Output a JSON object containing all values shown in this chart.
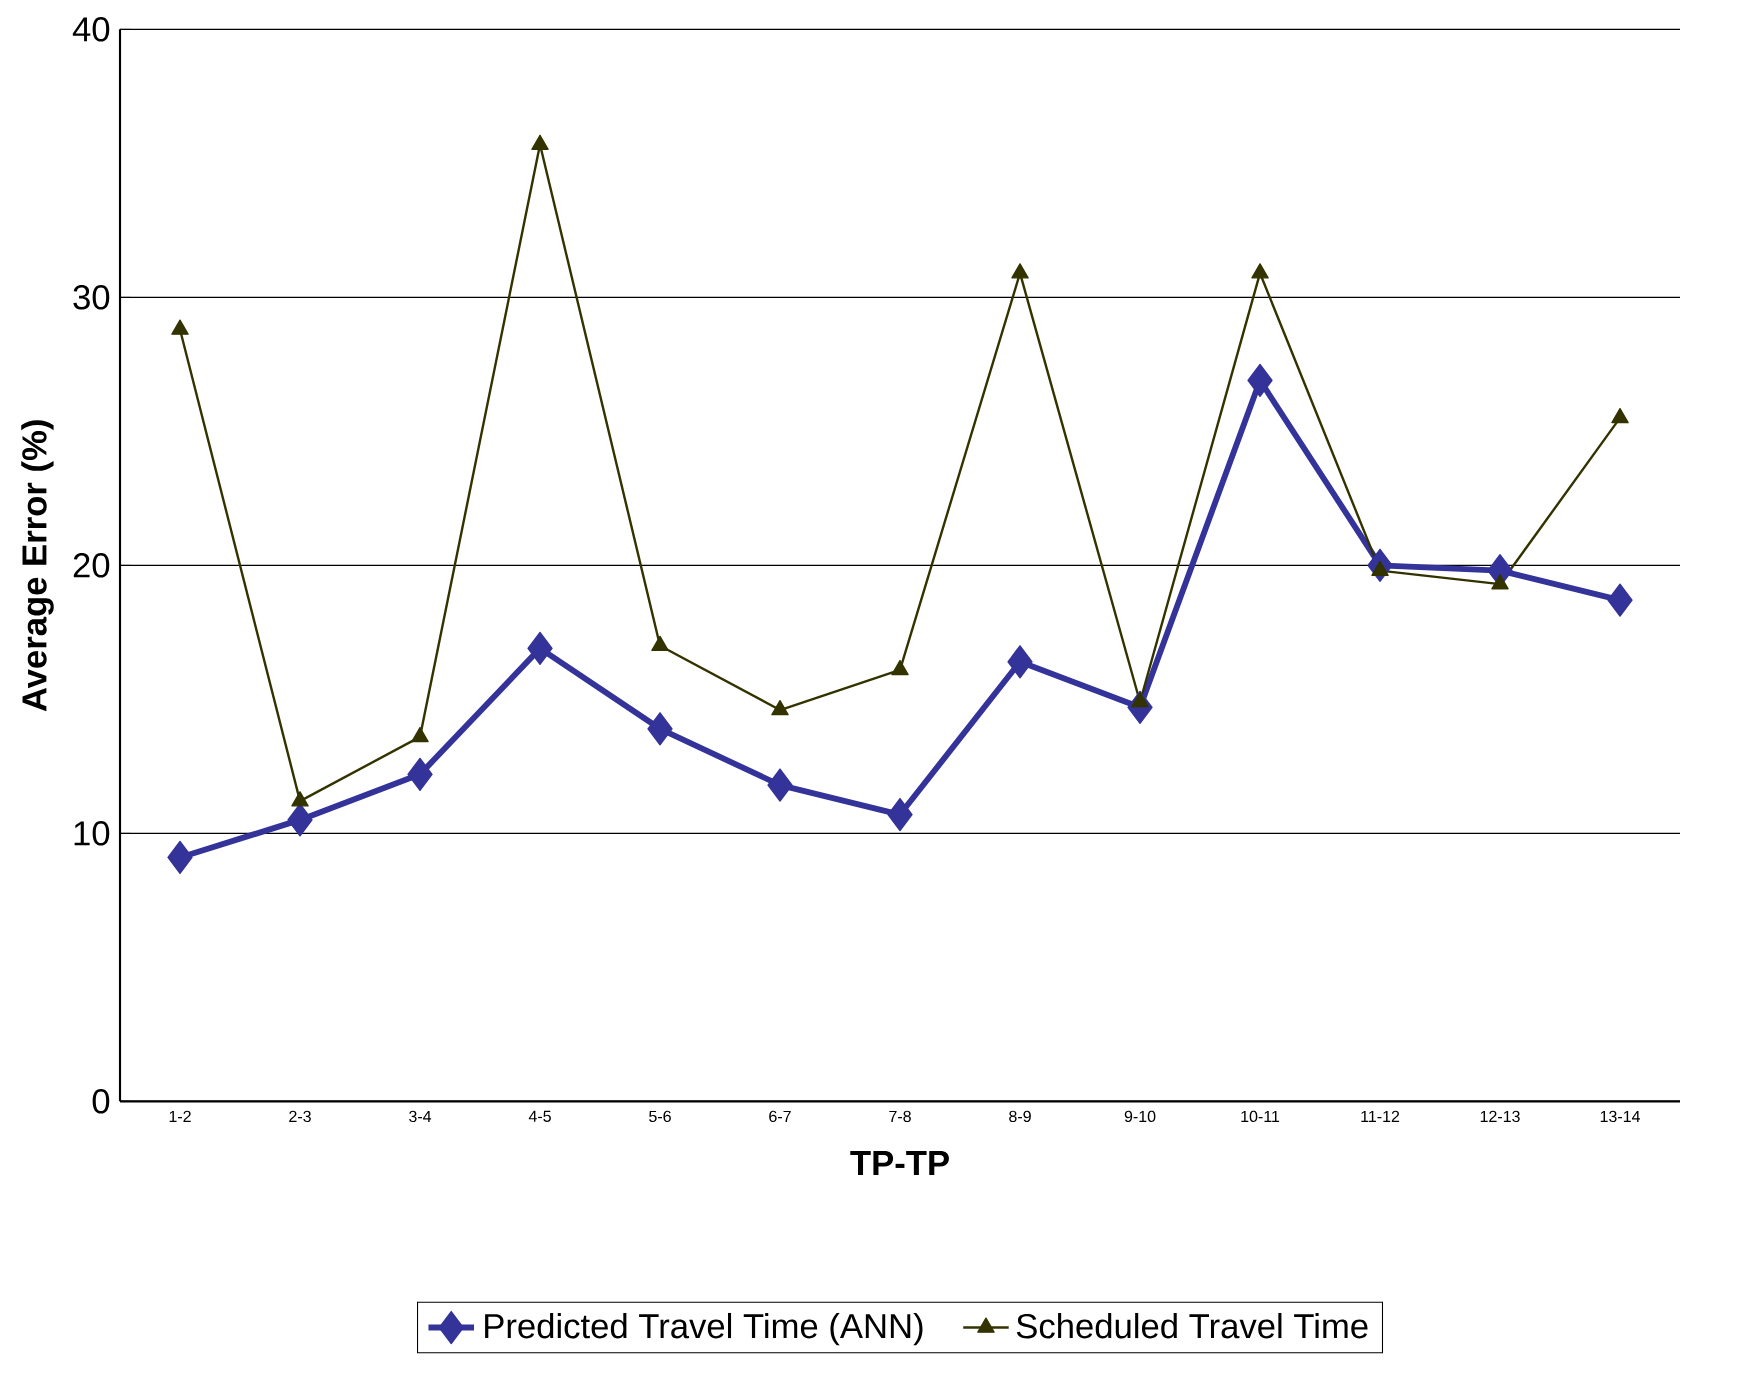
{
  "chart_data": {
    "type": "line",
    "xlabel": "TP-TP",
    "ylabel": "Average Error (%)",
    "categories": [
      "1-2",
      "2-3",
      "3-4",
      "4-5",
      "5-6",
      "6-7",
      "7-8",
      "8-9",
      "9-10",
      "10-11",
      "11-12",
      "12-13",
      "13-14"
    ],
    "series": [
      {
        "name": "Predicted Travel Time (ANN)",
        "color": "#333399",
        "marker": "diamond",
        "values": [
          9.1,
          10.5,
          12.2,
          16.9,
          13.9,
          11.8,
          10.7,
          16.4,
          14.7,
          26.9,
          20.0,
          19.8,
          18.7
        ]
      },
      {
        "name": "Scheduled Travel Time",
        "color": "#333300",
        "marker": "triangle",
        "values": [
          28.8,
          11.2,
          13.6,
          35.7,
          17.0,
          14.6,
          16.1,
          30.9,
          14.9,
          30.9,
          19.8,
          19.3,
          25.5
        ]
      }
    ],
    "ylim": [
      0,
      40
    ],
    "yticks": [
      0,
      10,
      20,
      30,
      40
    ],
    "grid": "y",
    "legend": "bottom"
  }
}
